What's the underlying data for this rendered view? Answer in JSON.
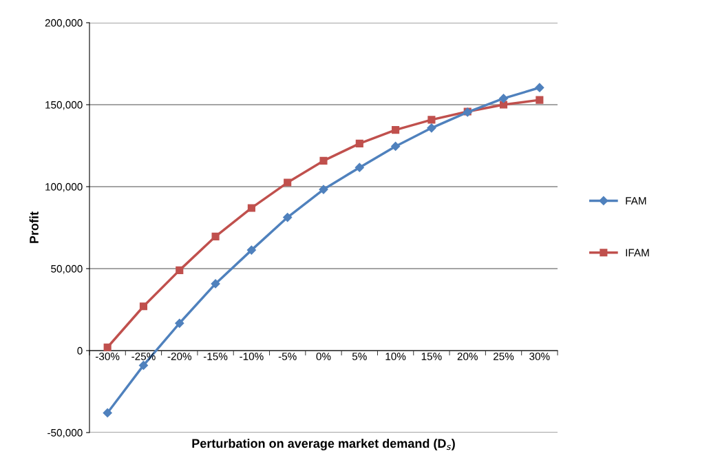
{
  "chart_data": {
    "type": "line",
    "xlabel": "Perturbation on average market demand (D$_{s}$)",
    "ylabel": "Profit",
    "categories": [
      "-30%",
      "-25%",
      "-20%",
      "-15%",
      "-10%",
      "-5%",
      "0%",
      "5%",
      "10%",
      "15%",
      "20%",
      "25%",
      "30%"
    ],
    "series": [
      {
        "name": "FAM",
        "color": "#4f81bd",
        "marker": "diamond",
        "values": [
          -38000,
          -9000,
          16700,
          40800,
          61300,
          81300,
          98300,
          111700,
          124600,
          135800,
          145400,
          153800,
          160400
        ]
      },
      {
        "name": "IFAM",
        "color": "#c0504d",
        "marker": "square",
        "values": [
          2000,
          27000,
          49000,
          69600,
          87000,
          102500,
          115800,
          126300,
          134600,
          140800,
          145800,
          150000,
          152900
        ]
      }
    ],
    "ylim": [
      -50000,
      200000
    ],
    "yticks": [
      {
        "value": -50000,
        "label": "-50,000"
      },
      {
        "value": 0,
        "label": "0"
      },
      {
        "value": 50000,
        "label": "50,000"
      },
      {
        "value": 100000,
        "label": "100,000"
      },
      {
        "value": 150000,
        "label": "150,000"
      },
      {
        "value": 200000,
        "label": "200,000"
      }
    ],
    "grid": "y",
    "legend": "right",
    "line_style": "solid"
  }
}
